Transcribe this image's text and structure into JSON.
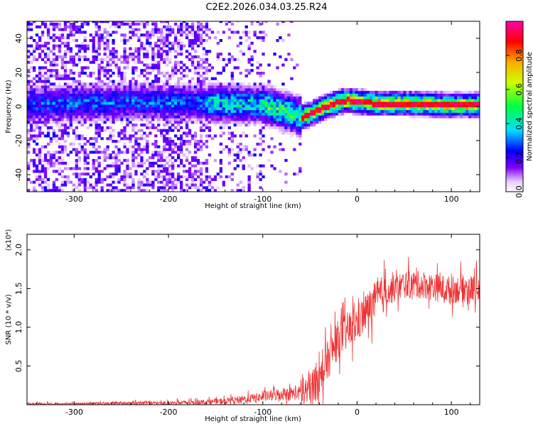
{
  "title": "C2E2.2026.034.03.25.R24",
  "chart_data": [
    {
      "type": "heatmap",
      "xlabel": "Height of straight line (km)",
      "ylabel": "Frequency (Hz)",
      "xlim": [
        -350,
        130
      ],
      "ylim": [
        -50,
        50
      ],
      "xticks": [
        -300,
        -200,
        -100,
        0,
        100
      ],
      "yticks": [
        -40,
        -20,
        0,
        20,
        40
      ],
      "colorbar": {
        "label": "Normalized spectral amplitude",
        "range": [
          0.0,
          1.0
        ],
        "ticks": [
          0.0,
          0.2,
          0.4,
          0.6,
          0.8
        ]
      },
      "ridge_center_hz": {
        "x": [
          -350,
          -250,
          -150,
          -100,
          -80,
          -60,
          -50,
          -40,
          -30,
          -20,
          -10,
          0,
          20,
          50,
          100,
          130
        ],
        "y": [
          0,
          2,
          1,
          0,
          -3,
          -7,
          -5,
          -2,
          0,
          2,
          3,
          2,
          1,
          1,
          0,
          0
        ]
      }
    },
    {
      "type": "line",
      "xlabel": "Height of straight line (km)",
      "ylabel": "SNR (10 * v/v)",
      "multiplier": "(x10⁴)",
      "xlim": [
        -350,
        130
      ],
      "ylim": [
        0,
        2.2
      ],
      "xticks": [
        -300,
        -200,
        -100,
        0,
        100
      ],
      "yticks": [
        0.5,
        1.0,
        1.5,
        2.0
      ],
      "series": [
        {
          "name": "SNR",
          "color": "#ee3333",
          "x": [
            -350,
            -300,
            -250,
            -200,
            -150,
            -120,
            -100,
            -80,
            -60,
            -50,
            -40,
            -30,
            -20,
            -10,
            0,
            10,
            20,
            30,
            40,
            50,
            60,
            70,
            80,
            90,
            100,
            110,
            120,
            130
          ],
          "y": [
            0.01,
            0.01,
            0.02,
            0.02,
            0.04,
            0.07,
            0.1,
            0.14,
            0.15,
            0.2,
            0.35,
            0.6,
            0.85,
            0.95,
            1.05,
            1.2,
            1.35,
            1.45,
            1.5,
            1.55,
            1.55,
            1.55,
            1.52,
            1.5,
            1.48,
            1.5,
            1.5,
            1.5
          ]
        }
      ]
    }
  ]
}
